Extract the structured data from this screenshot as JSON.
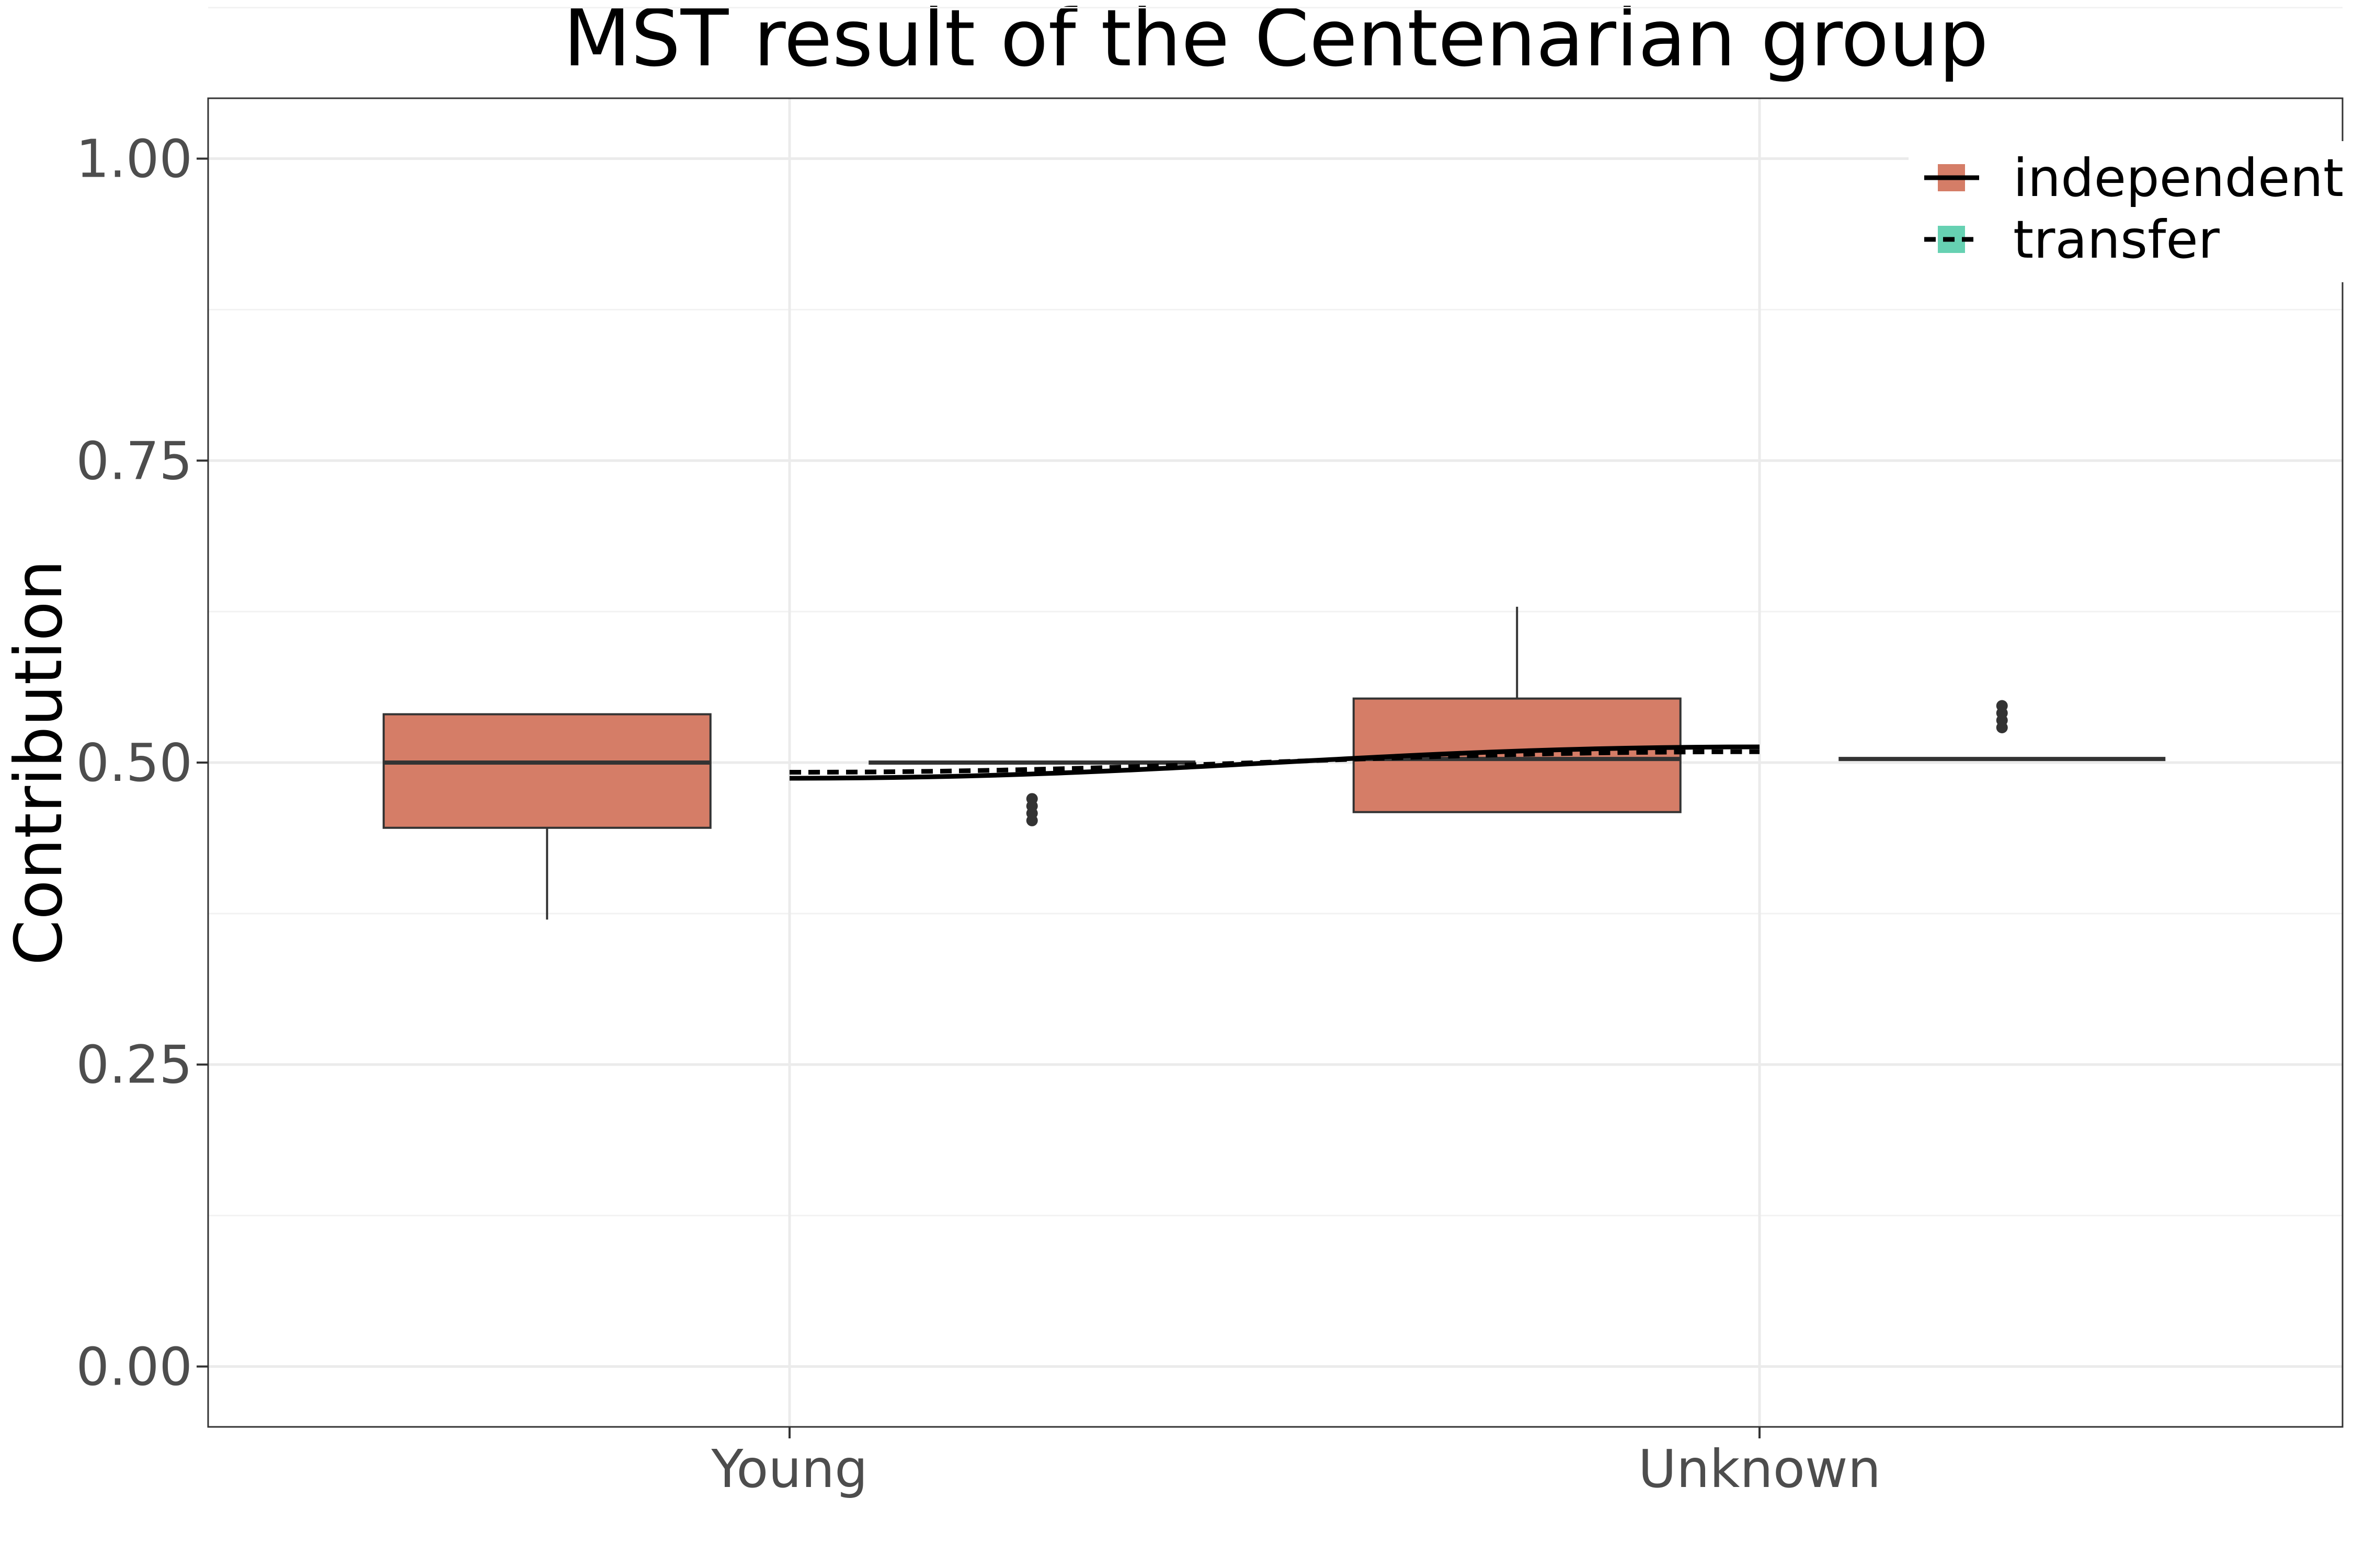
{
  "chart_data": {
    "type": "box",
    "title": "MST result of the Centenarian group",
    "xlabel": "",
    "ylabel": "Contribution",
    "ylim": [
      -0.05,
      1.05
    ],
    "yticks": [
      0.0,
      0.25,
      0.5,
      0.75,
      1.0
    ],
    "ytick_labels": [
      "0.00",
      "0.25",
      "0.50",
      "0.75",
      "1.00"
    ],
    "categories": [
      "Young",
      "Unknown"
    ],
    "grid": true,
    "legend_position": "top-right",
    "series": [
      {
        "name": "independent",
        "color": "#d57d67",
        "boxes": [
          {
            "category": "Young",
            "q1": 0.446,
            "median": 0.5,
            "q3": 0.54,
            "whisker_low": 0.37,
            "whisker_high": 0.54,
            "outliers": []
          },
          {
            "category": "Unknown",
            "q1": 0.459,
            "median": 0.503,
            "q3": 0.553,
            "whisker_low": 0.459,
            "whisker_high": 0.629,
            "outliers": []
          }
        ],
        "line_style": "solid",
        "trend": [
          0.487,
          0.513
        ]
      },
      {
        "name": "transfer",
        "color": "#66d1b2",
        "boxes": [
          {
            "category": "Young",
            "q1": 0.5,
            "median": 0.5,
            "q3": 0.5,
            "whisker_low": 0.5,
            "whisker_high": 0.5,
            "outliers": [
              0.452,
              0.458,
              0.464,
              0.47
            ]
          },
          {
            "category": "Unknown",
            "q1": 0.503,
            "median": 0.503,
            "q3": 0.503,
            "whisker_low": 0.503,
            "whisker_high": 0.503,
            "outliers": [
              0.529,
              0.535,
              0.541,
              0.547
            ]
          }
        ],
        "line_style": "dashed",
        "trend": [
          0.492,
          0.509
        ]
      }
    ]
  }
}
